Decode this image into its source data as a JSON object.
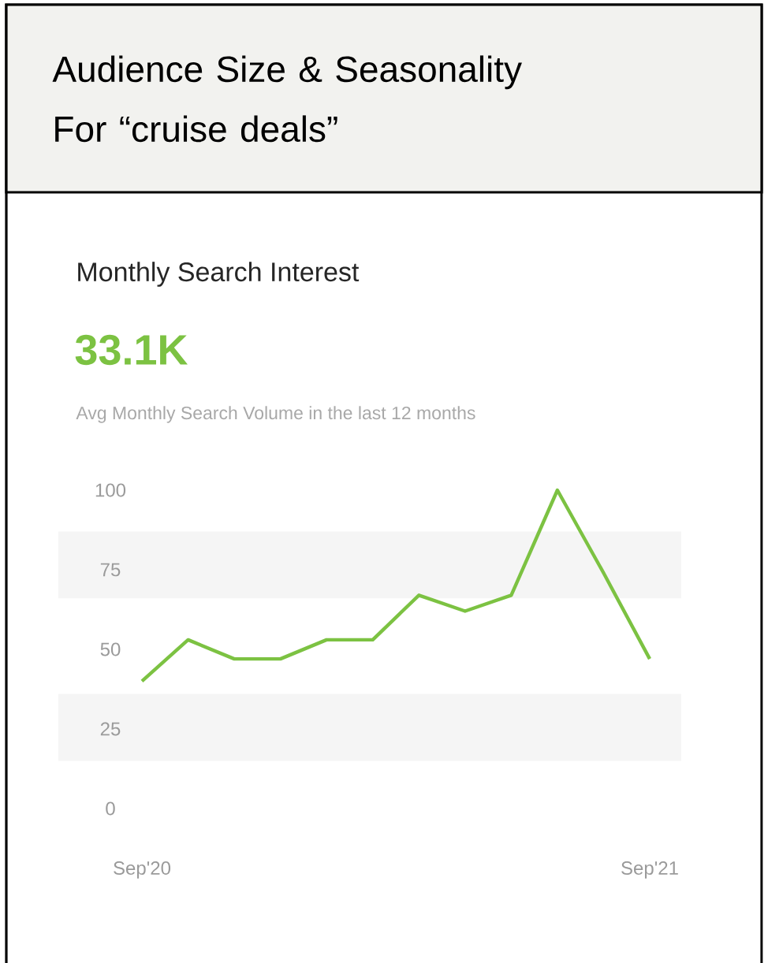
{
  "chart_data": {
    "type": "line",
    "title": "Audience Size & Seasonality For “cruise deals”",
    "subtitle": "Monthly Search Interest",
    "annotations": [
      "33.1K",
      "Avg Monthly Search Volume in the last 12 months"
    ],
    "categories": [
      "Sep'20",
      null,
      null,
      null,
      null,
      null,
      null,
      null,
      null,
      null,
      null,
      "Sep'21"
    ],
    "values": [
      40,
      53,
      47,
      47,
      53,
      53,
      67,
      62,
      67,
      100,
      74,
      47
    ],
    "color": "#7cc242",
    "ylim": [
      0,
      100
    ],
    "yticks": [
      0,
      25,
      50,
      75,
      100
    ],
    "bands": [
      {
        "axis": "y",
        "from": 15,
        "to": 36,
        "color": "#f5f5f5"
      },
      {
        "axis": "y",
        "from": 66,
        "to": 87,
        "color": "#f5f5f5"
      }
    ]
  }
}
